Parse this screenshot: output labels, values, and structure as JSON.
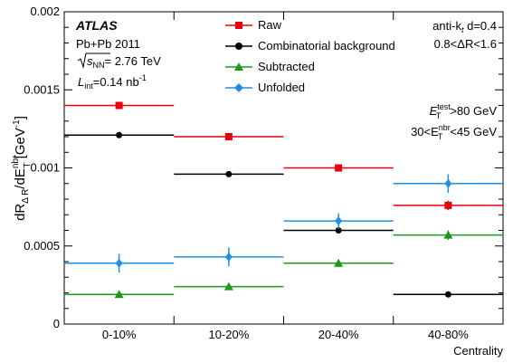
{
  "chart_data": {
    "type": "scatter",
    "categories": [
      "0-10%",
      "10-20%",
      "20-40%",
      "40-80%"
    ],
    "xlabel": "Centrality",
    "ylabel": {
      "main": "dR",
      "sub1": "Δ R",
      "mid": "/dE",
      "sup": "nbr",
      "sub2": "T",
      "unit": " [GeV",
      "unit_sup": "-1",
      "close": "]"
    },
    "ylim": [
      0,
      0.002
    ],
    "yticks": [
      {
        "value": 0,
        "label": "0"
      },
      {
        "value": 0.0005,
        "label": "0.0005"
      },
      {
        "value": 0.001,
        "label": "0.001"
      },
      {
        "value": 0.0015,
        "label": "0.0015"
      },
      {
        "value": 0.002,
        "label": "0.002"
      }
    ],
    "legend_position": "top-center",
    "series": [
      {
        "name": "Raw",
        "color": "#e8000b",
        "marker": "square",
        "values": [
          0.0014,
          0.0012,
          0.001,
          0.00076
        ],
        "errors": [
          2e-05,
          2e-05,
          2e-05,
          3e-05
        ]
      },
      {
        "name": "Combinatorial background",
        "color": "#000000",
        "marker": "circle",
        "values": [
          0.00121,
          0.00096,
          0.0006,
          0.00019
        ],
        "errors": [
          0,
          0,
          0,
          0
        ]
      },
      {
        "name": "Subtracted",
        "color": "#1a9a1a",
        "marker": "triangle",
        "values": [
          0.00019,
          0.00024,
          0.00039,
          0.00057
        ],
        "errors": [
          2e-05,
          2e-05,
          2e-05,
          3e-05
        ]
      },
      {
        "name": "Unfolded",
        "color": "#1e90e8",
        "marker": "diamond",
        "values": [
          0.00039,
          0.00043,
          0.00066,
          0.0009
        ],
        "errors": [
          6e-05,
          6e-05,
          5e-05,
          6e-05
        ]
      }
    ],
    "annotations_left": {
      "experiment": "ATLAS",
      "system": "Pb+Pb 2011",
      "energy": {
        "label": "s",
        "sub": "NN",
        "value": "= 2.76 TeV"
      },
      "lumi": {
        "label": "L",
        "sub": "int",
        "value": "=0.14 nb",
        "sup": "-1"
      }
    },
    "annotations_right": {
      "algo": {
        "text": "anti-k",
        "sub": "t",
        "rest": " d=0.4"
      },
      "dr": "0.8<ΔR<1.6",
      "et_test": {
        "label": "E",
        "sup": "test",
        "sub": "T",
        "rest": ">80 GeV"
      },
      "et_nbr": {
        "pre": "30<E",
        "sup": "nbr",
        "sub": "T",
        "rest": "<45 GeV"
      }
    }
  }
}
